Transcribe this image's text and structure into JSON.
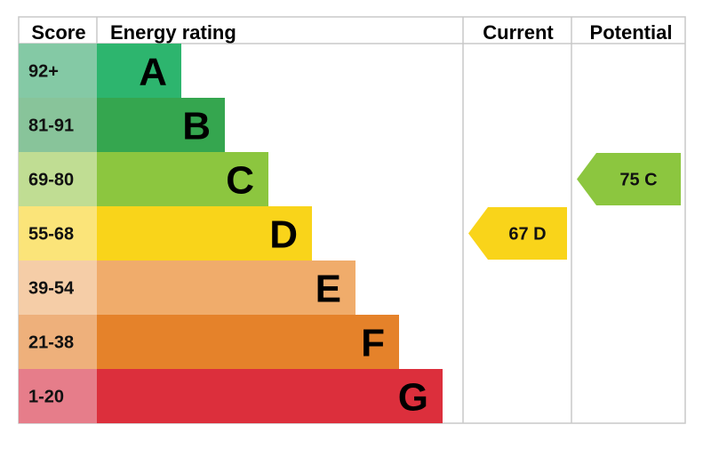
{
  "chart_data": {
    "type": "table",
    "headers": {
      "score": "Score",
      "rating": "Energy rating",
      "current": "Current",
      "potential": "Potential"
    },
    "bands": [
      {
        "range": "92+",
        "letter": "A",
        "color": "#2db56e",
        "score_color": "#84c9a5"
      },
      {
        "range": "81-91",
        "letter": "B",
        "color": "#35a64f",
        "score_color": "#88c49a"
      },
      {
        "range": "69-80",
        "letter": "C",
        "color": "#8cc63f",
        "score_color": "#c0dd93"
      },
      {
        "range": "55-68",
        "letter": "D",
        "color": "#f9d41a",
        "score_color": "#fbe479"
      },
      {
        "range": "39-54",
        "letter": "E",
        "color": "#f0ac6b",
        "score_color": "#f5cda7"
      },
      {
        "range": "21-38",
        "letter": "F",
        "color": "#e5822a",
        "score_color": "#eeb07b"
      },
      {
        "range": "1-20",
        "letter": "G",
        "color": "#dc2f3c",
        "score_color": "#e67d8a"
      }
    ],
    "current": {
      "value": 67,
      "letter": "D",
      "label": "67  D",
      "color": "#f9d41a"
    },
    "potential": {
      "value": 75,
      "letter": "C",
      "label": "75  C",
      "color": "#8cc63f"
    }
  }
}
